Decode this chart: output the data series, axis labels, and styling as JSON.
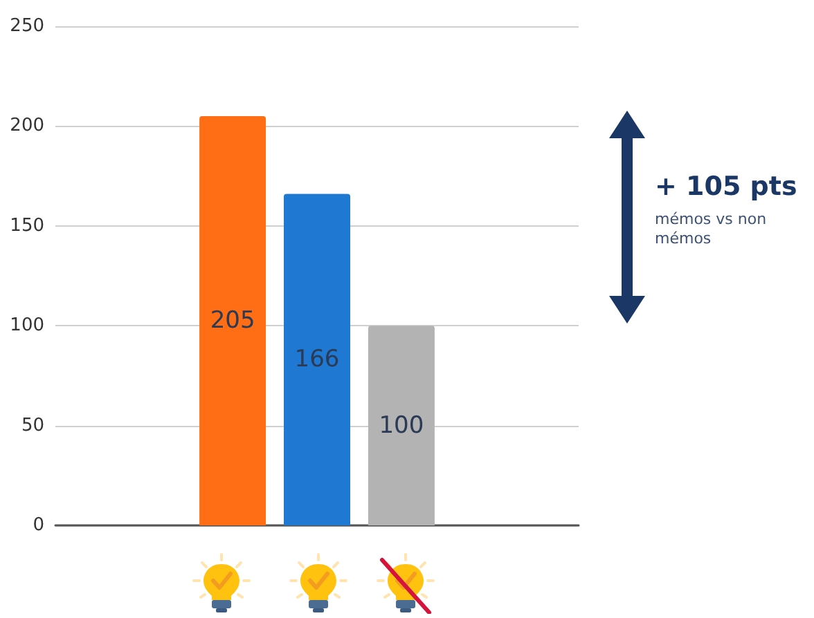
{
  "chart_data": {
    "type": "bar",
    "categories": [
      null
    ],
    "series": [
      {
        "color": "#ff6e14",
        "values": [
          205
        ]
      },
      {
        "color": "#1f78d1",
        "values": [
          166
        ]
      },
      {
        "color": "#b3b3b3",
        "values": [
          100
        ]
      }
    ],
    "ylim": [
      0,
      250
    ],
    "yticks": [
      0,
      50,
      100,
      150,
      200,
      250
    ],
    "grid": "y",
    "tick_labels": "y",
    "data_labels": true,
    "annotations": [
      "+ 105 pts",
      "mémos vs non mémos"
    ]
  }
}
